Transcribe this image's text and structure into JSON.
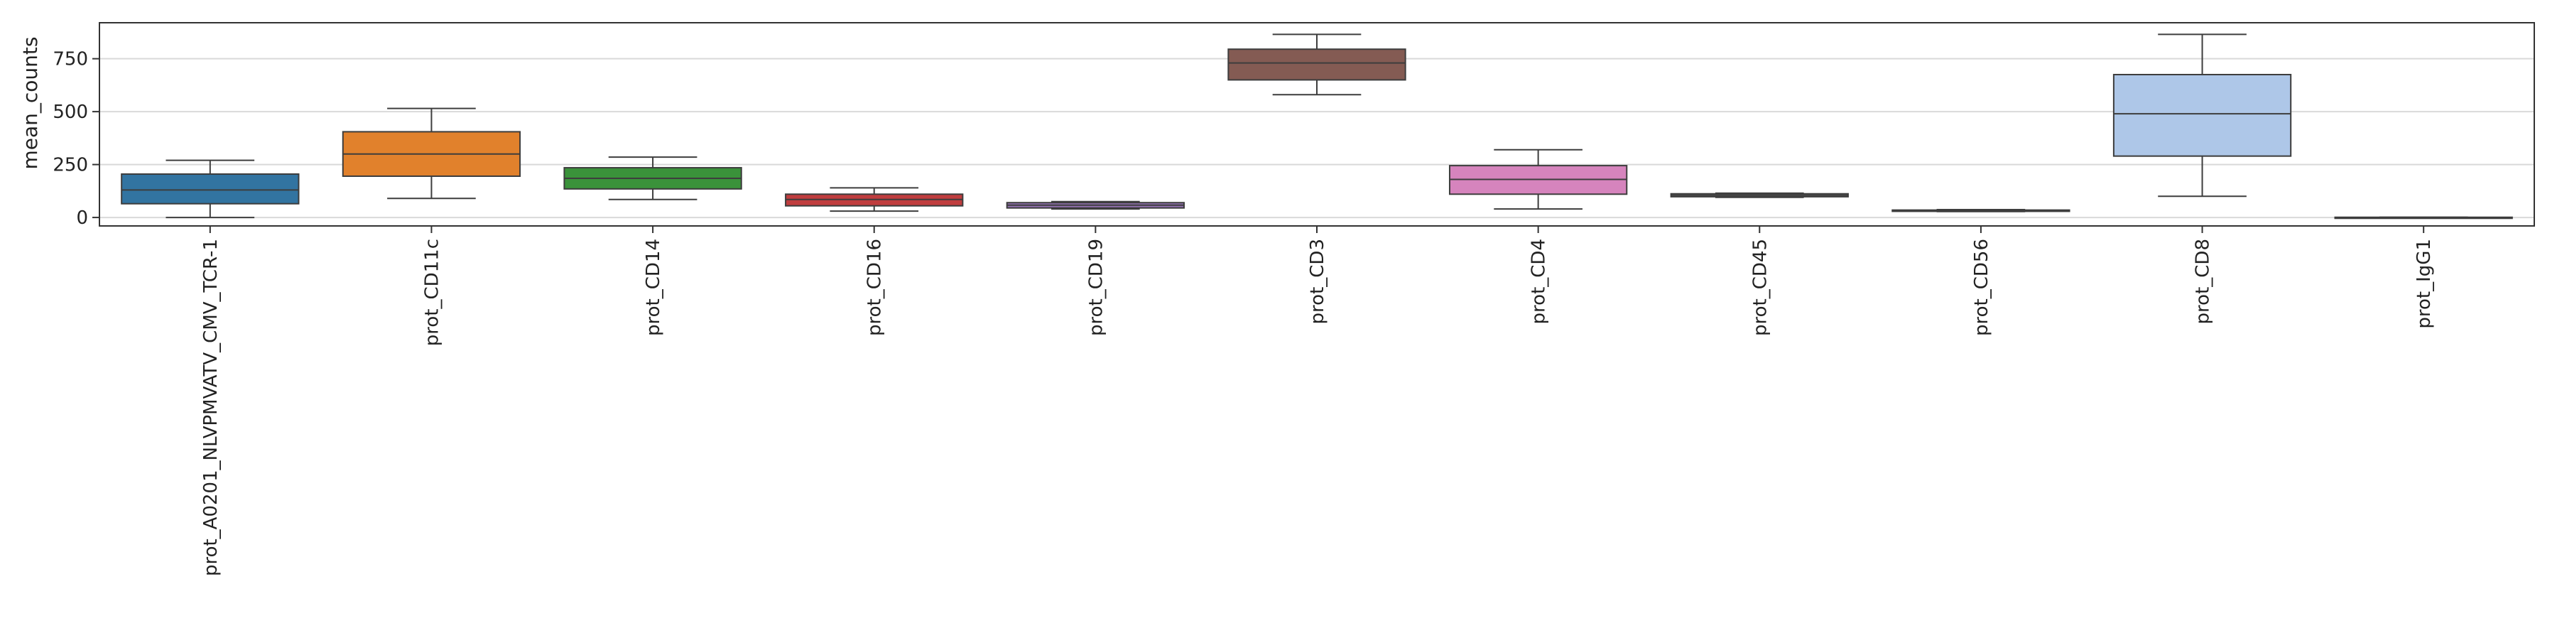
{
  "chart_data": {
    "type": "box",
    "ylabel": "mean_counts",
    "ylim": [
      -40,
      920
    ],
    "yticks": [
      0,
      250,
      500,
      750
    ],
    "grid": "horizontal",
    "categories": [
      "prot_A0201_NLVPMVATV_CMV_TCR-1",
      "prot_CD11c",
      "prot_CD14",
      "prot_CD16",
      "prot_CD19",
      "prot_CD3",
      "prot_CD4",
      "prot_CD45",
      "prot_CD56",
      "prot_CD8",
      "prot_IgG1"
    ],
    "boxes": [
      {
        "whislo": 0,
        "q1": 65,
        "med": 130,
        "q3": 205,
        "whishi": 270,
        "color": "#3274a1"
      },
      {
        "whislo": 90,
        "q1": 195,
        "med": 300,
        "q3": 405,
        "whishi": 515,
        "color": "#e1812c"
      },
      {
        "whislo": 85,
        "q1": 135,
        "med": 185,
        "q3": 235,
        "whishi": 285,
        "color": "#3a923a"
      },
      {
        "whislo": 30,
        "q1": 55,
        "med": 85,
        "q3": 110,
        "whishi": 140,
        "color": "#c03d3e"
      },
      {
        "whislo": 40,
        "q1": 45,
        "med": 58,
        "q3": 70,
        "whishi": 75,
        "color": "#9372b2"
      },
      {
        "whislo": 580,
        "q1": 650,
        "med": 730,
        "q3": 795,
        "whishi": 865,
        "color": "#845b53"
      },
      {
        "whislo": 40,
        "q1": 110,
        "med": 180,
        "q3": 245,
        "whishi": 320,
        "color": "#d684bd"
      },
      {
        "whislo": 95,
        "q1": 98,
        "med": 105,
        "q3": 112,
        "whishi": 115,
        "color": "#7f7f7f"
      },
      {
        "whislo": 28,
        "q1": 29,
        "med": 32,
        "q3": 35,
        "whishi": 37,
        "color": "#a9aa35"
      },
      {
        "whislo": 100,
        "q1": 290,
        "med": 490,
        "q3": 675,
        "whishi": 865,
        "color": "#aec7e8"
      },
      {
        "whislo": 0,
        "q1": 0,
        "med": 0,
        "q3": 1,
        "whishi": 1,
        "color": "#2ca4b5"
      }
    ]
  }
}
